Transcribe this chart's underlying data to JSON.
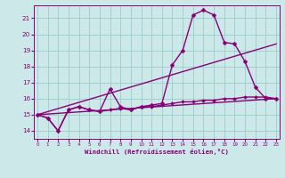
{
  "xlabel": "Windchill (Refroidissement éolien,°C)",
  "background_color": "#cce8e8",
  "grid_color": "#99cccc",
  "line_color": "#880077",
  "x_ticks": [
    0,
    1,
    2,
    3,
    4,
    5,
    6,
    7,
    8,
    9,
    10,
    11,
    12,
    13,
    14,
    15,
    16,
    17,
    18,
    19,
    20,
    21,
    22,
    23
  ],
  "y_ticks": [
    14,
    15,
    16,
    17,
    18,
    19,
    20,
    21
  ],
  "xlim": [
    -0.3,
    23.3
  ],
  "ylim": [
    13.5,
    21.8
  ],
  "series": [
    {
      "x": [
        0,
        1,
        2,
        3,
        4,
        5,
        6,
        7,
        8,
        9,
        10,
        11,
        12,
        13,
        14,
        15,
        16,
        17,
        18,
        19,
        20,
        21,
        22,
        23
      ],
      "y": [
        15.0,
        14.8,
        14.0,
        15.3,
        15.5,
        15.3,
        15.2,
        16.6,
        15.5,
        15.3,
        15.5,
        15.6,
        15.7,
        18.1,
        19.0,
        21.2,
        21.5,
        21.2,
        19.5,
        19.4,
        18.3,
        16.7,
        16.0,
        16.0
      ],
      "marker": "D",
      "markersize": 2.5,
      "linewidth": 1.0,
      "linestyle": "-"
    },
    {
      "x": [
        0,
        23
      ],
      "y": [
        15.0,
        19.4
      ],
      "marker": null,
      "markersize": 0,
      "linewidth": 1.0,
      "linestyle": "-"
    },
    {
      "x": [
        0,
        23
      ],
      "y": [
        15.0,
        16.0
      ],
      "marker": null,
      "markersize": 0,
      "linewidth": 1.0,
      "linestyle": "-"
    },
    {
      "x": [
        0,
        1,
        2,
        3,
        4,
        5,
        6,
        7,
        8,
        9,
        10,
        11,
        12,
        13,
        14,
        15,
        16,
        17,
        18,
        19,
        20,
        21,
        22,
        23
      ],
      "y": [
        15.0,
        14.8,
        14.0,
        15.3,
        15.5,
        15.3,
        15.2,
        15.3,
        15.4,
        15.3,
        15.5,
        15.5,
        15.6,
        15.7,
        15.8,
        15.8,
        15.9,
        15.9,
        16.0,
        16.0,
        16.1,
        16.1,
        16.1,
        16.0
      ],
      "marker": "D",
      "markersize": 2.0,
      "linewidth": 1.0,
      "linestyle": "-"
    }
  ]
}
